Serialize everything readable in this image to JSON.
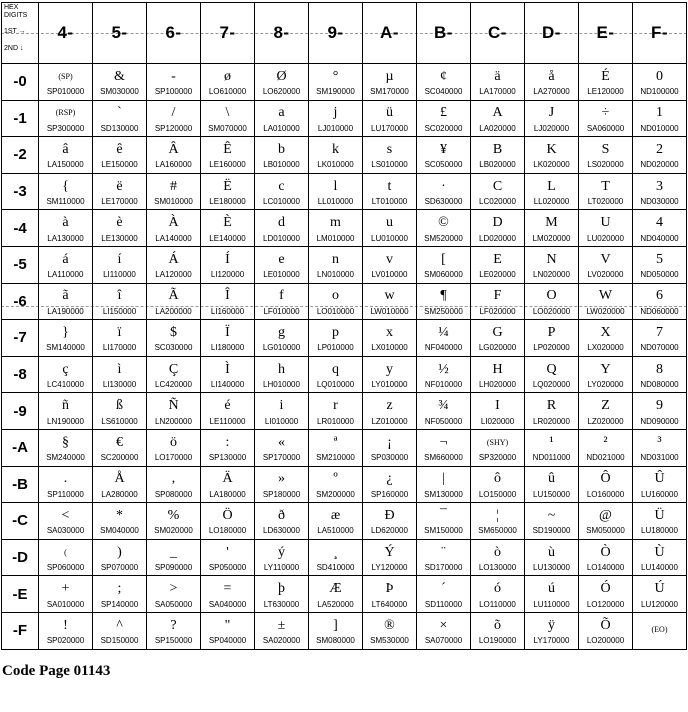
{
  "page": {
    "caption": "Code Page 01143"
  },
  "colors": {
    "background": "#ffffff",
    "grid_border": "#000000",
    "dash_line": "#9a9a9a",
    "text": "#000000"
  },
  "table": {
    "corner": {
      "title": "HEX DIGITS",
      "first": "1ST →",
      "second": "2ND ↓"
    },
    "columns": [
      "4-",
      "5-",
      "6-",
      "7-",
      "8-",
      "9-",
      "A-",
      "B-",
      "C-",
      "D-",
      "E-",
      "F-"
    ],
    "rows": [
      {
        "label": "-0",
        "cells": [
          [
            "(SP)",
            "SP010000"
          ],
          [
            "&",
            "SM030000"
          ],
          [
            "-",
            "SP100000"
          ],
          [
            "ø",
            "LO610000"
          ],
          [
            "Ø",
            "LO620000"
          ],
          [
            "°",
            "SM190000"
          ],
          [
            "µ",
            "SM170000"
          ],
          [
            "¢",
            "SC040000"
          ],
          [
            "ä",
            "LA170000"
          ],
          [
            "å",
            "LA270000"
          ],
          [
            "É",
            "LE120000"
          ],
          [
            "0",
            "ND100000"
          ]
        ]
      },
      {
        "label": "-1",
        "cells": [
          [
            "(RSP)",
            "SP300000"
          ],
          [
            "`",
            "SD130000"
          ],
          [
            "/",
            "SP120000"
          ],
          [
            "\\",
            "SM070000"
          ],
          [
            "a",
            "LA010000"
          ],
          [
            "j",
            "LJ010000"
          ],
          [
            "ü",
            "LU170000"
          ],
          [
            "£",
            "SC020000"
          ],
          [
            "A",
            "LA020000"
          ],
          [
            "J",
            "LJ020000"
          ],
          [
            "÷",
            "SA060000"
          ],
          [
            "1",
            "ND010000"
          ]
        ]
      },
      {
        "label": "-2",
        "cells": [
          [
            "â",
            "LA150000"
          ],
          [
            "ê",
            "LE150000"
          ],
          [
            "Â",
            "LA160000"
          ],
          [
            "Ê",
            "LE160000"
          ],
          [
            "b",
            "LB010000"
          ],
          [
            "k",
            "LK010000"
          ],
          [
            "s",
            "LS010000"
          ],
          [
            "¥",
            "SC050000"
          ],
          [
            "B",
            "LB020000"
          ],
          [
            "K",
            "LK020000"
          ],
          [
            "S",
            "LS020000"
          ],
          [
            "2",
            "ND020000"
          ]
        ]
      },
      {
        "label": "-3",
        "cells": [
          [
            "{",
            "SM110000"
          ],
          [
            "ë",
            "LE170000"
          ],
          [
            "#",
            "SM010000"
          ],
          [
            "Ë",
            "LE180000"
          ],
          [
            "c",
            "LC010000"
          ],
          [
            "l",
            "LL010000"
          ],
          [
            "t",
            "LT010000"
          ],
          [
            "·",
            "SD630000"
          ],
          [
            "C",
            "LC020000"
          ],
          [
            "L",
            "LL020000"
          ],
          [
            "T",
            "LT020000"
          ],
          [
            "3",
            "ND030000"
          ]
        ]
      },
      {
        "label": "-4",
        "cells": [
          [
            "à",
            "LA130000"
          ],
          [
            "è",
            "LE130000"
          ],
          [
            "À",
            "LA140000"
          ],
          [
            "È",
            "LE140000"
          ],
          [
            "d",
            "LD010000"
          ],
          [
            "m",
            "LM010000"
          ],
          [
            "u",
            "LU010000"
          ],
          [
            "©",
            "SM520000"
          ],
          [
            "D",
            "LD020000"
          ],
          [
            "M",
            "LM020000"
          ],
          [
            "U",
            "LU020000"
          ],
          [
            "4",
            "ND040000"
          ]
        ]
      },
      {
        "label": "-5",
        "cells": [
          [
            "á",
            "LA110000"
          ],
          [
            "í",
            "LI110000"
          ],
          [
            "Á",
            "LA120000"
          ],
          [
            "Í",
            "LI120000"
          ],
          [
            "e",
            "LE010000"
          ],
          [
            "n",
            "LN010000"
          ],
          [
            "v",
            "LV010000"
          ],
          [
            "[",
            "SM060000"
          ],
          [
            "E",
            "LE020000"
          ],
          [
            "N",
            "LN020000"
          ],
          [
            "V",
            "LV020000"
          ],
          [
            "5",
            "ND050000"
          ]
        ]
      },
      {
        "label": "-6",
        "cells": [
          [
            "ã",
            "LA190000"
          ],
          [
            "î",
            "LI150000"
          ],
          [
            "Ã",
            "LA200000"
          ],
          [
            "Î",
            "LI160000"
          ],
          [
            "f",
            "LF010000"
          ],
          [
            "o",
            "LO010000"
          ],
          [
            "w",
            "LW010000"
          ],
          [
            "¶",
            "SM250000"
          ],
          [
            "F",
            "LF020000"
          ],
          [
            "O",
            "LO020000"
          ],
          [
            "W",
            "LW020000"
          ],
          [
            "6",
            "ND060000"
          ]
        ]
      },
      {
        "label": "-7",
        "cells": [
          [
            "}",
            "SM140000"
          ],
          [
            "ï",
            "LI170000"
          ],
          [
            "$",
            "SC030000"
          ],
          [
            "Ï",
            "LI180000"
          ],
          [
            "g",
            "LG010000"
          ],
          [
            "p",
            "LP010000"
          ],
          [
            "x",
            "LX010000"
          ],
          [
            "¼",
            "NF040000"
          ],
          [
            "G",
            "LG020000"
          ],
          [
            "P",
            "LP020000"
          ],
          [
            "X",
            "LX020000"
          ],
          [
            "7",
            "ND070000"
          ]
        ]
      },
      {
        "label": "-8",
        "cells": [
          [
            "ç",
            "LC410000"
          ],
          [
            "ì",
            "LI130000"
          ],
          [
            "Ç",
            "LC420000"
          ],
          [
            "Ì",
            "LI140000"
          ],
          [
            "h",
            "LH010000"
          ],
          [
            "q",
            "LQ010000"
          ],
          [
            "y",
            "LY010000"
          ],
          [
            "½",
            "NF010000"
          ],
          [
            "H",
            "LH020000"
          ],
          [
            "Q",
            "LQ020000"
          ],
          [
            "Y",
            "LY020000"
          ],
          [
            "8",
            "ND080000"
          ]
        ]
      },
      {
        "label": "-9",
        "cells": [
          [
            "ñ",
            "LN190000"
          ],
          [
            "ß",
            "LS610000"
          ],
          [
            "Ñ",
            "LN200000"
          ],
          [
            "é",
            "LE110000"
          ],
          [
            "i",
            "LI010000"
          ],
          [
            "r",
            "LR010000"
          ],
          [
            "z",
            "LZ010000"
          ],
          [
            "¾",
            "NF050000"
          ],
          [
            "I",
            "LI020000"
          ],
          [
            "R",
            "LR020000"
          ],
          [
            "Z",
            "LZ020000"
          ],
          [
            "9",
            "ND090000"
          ]
        ]
      },
      {
        "label": "-A",
        "cells": [
          [
            "§",
            "SM240000"
          ],
          [
            "€",
            "SC200000"
          ],
          [
            "ö",
            "LO170000"
          ],
          [
            ":",
            "SP130000"
          ],
          [
            "«",
            "SP170000"
          ],
          [
            "ª",
            "SM210000"
          ],
          [
            "¡",
            "SP030000"
          ],
          [
            "¬",
            "SM660000"
          ],
          [
            "(SHY)",
            "SP320000"
          ],
          [
            "¹",
            "ND011000"
          ],
          [
            "²",
            "ND021000"
          ],
          [
            "³",
            "ND031000"
          ]
        ]
      },
      {
        "label": "-B",
        "cells": [
          [
            ".",
            "SP110000"
          ],
          [
            "Å",
            "LA280000"
          ],
          [
            ",",
            "SP080000"
          ],
          [
            "Ä",
            "LA180000"
          ],
          [
            "»",
            "SP180000"
          ],
          [
            "º",
            "SM200000"
          ],
          [
            "¿",
            "SP160000"
          ],
          [
            "|",
            "SM130000"
          ],
          [
            "ô",
            "LO150000"
          ],
          [
            "û",
            "LU150000"
          ],
          [
            "Ô",
            "LO160000"
          ],
          [
            "Û",
            "LU160000"
          ]
        ]
      },
      {
        "label": "-C",
        "cells": [
          [
            "<",
            "SA030000"
          ],
          [
            "*",
            "SM040000"
          ],
          [
            "%",
            "SM020000"
          ],
          [
            "Ö",
            "LO180000"
          ],
          [
            "ð",
            "LD630000"
          ],
          [
            "æ",
            "LA510000"
          ],
          [
            "Ð",
            "LD620000"
          ],
          [
            "¯",
            "SM150000"
          ],
          [
            "¦",
            "SM650000"
          ],
          [
            "~",
            "SD190000"
          ],
          [
            "@",
            "SM050000"
          ],
          [
            "Ü",
            "LU180000"
          ]
        ]
      },
      {
        "label": "-D",
        "cells": [
          [
            "(",
            "SP060000"
          ],
          [
            ")",
            "SP070000"
          ],
          [
            "_",
            "SP090000"
          ],
          [
            "'",
            "SP050000"
          ],
          [
            "ý",
            "LY110000"
          ],
          [
            "¸",
            "SD410000"
          ],
          [
            "Ý",
            "LY120000"
          ],
          [
            "¨",
            "SD170000"
          ],
          [
            "ò",
            "LO130000"
          ],
          [
            "ù",
            "LU130000"
          ],
          [
            "Ò",
            "LO140000"
          ],
          [
            "Ù",
            "LU140000"
          ]
        ]
      },
      {
        "label": "-E",
        "cells": [
          [
            "+",
            "SA010000"
          ],
          [
            ";",
            "SP140000"
          ],
          [
            ">",
            "SA050000"
          ],
          [
            "=",
            "SA040000"
          ],
          [
            "þ",
            "LT630000"
          ],
          [
            "Æ",
            "LA520000"
          ],
          [
            "Þ",
            "LT640000"
          ],
          [
            "´",
            "SD110000"
          ],
          [
            "ó",
            "LO110000"
          ],
          [
            "ú",
            "LU110000"
          ],
          [
            "Ó",
            "LO120000"
          ],
          [
            "Ú",
            "LU120000"
          ]
        ]
      },
      {
        "label": "-F",
        "cells": [
          [
            "!",
            "SP020000"
          ],
          [
            "^",
            "SD150000"
          ],
          [
            "?",
            "SP150000"
          ],
          [
            "\"",
            "SP040000"
          ],
          [
            "±",
            "SA020000"
          ],
          [
            "]",
            "SM080000"
          ],
          [
            "®",
            "SM530000"
          ],
          [
            "×",
            "SA070000"
          ],
          [
            "õ",
            "LO190000"
          ],
          [
            "ÿ",
            "LY170000"
          ],
          [
            "Õ",
            "LO200000"
          ],
          [
            "(EO)",
            ""
          ]
        ]
      }
    ]
  }
}
